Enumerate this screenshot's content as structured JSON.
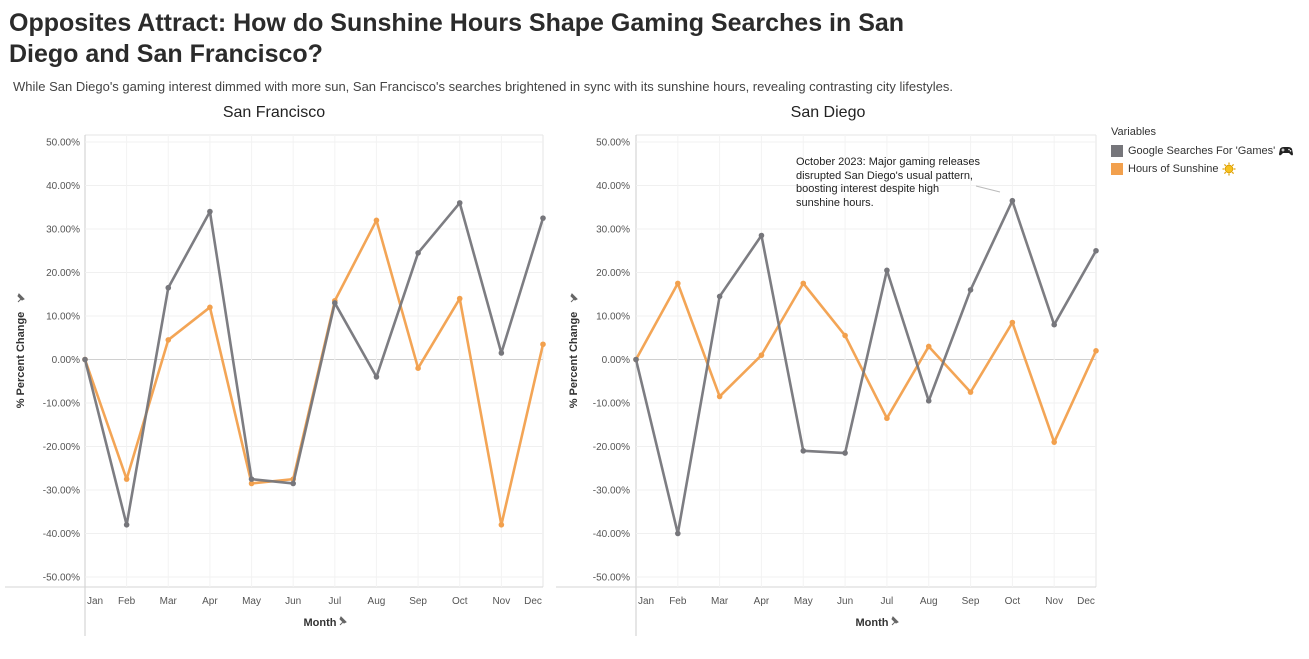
{
  "title": "Opposites Attract: How do Sunshine Hours Shape Gaming Searches in San Diego and San Francisco?",
  "subtitle": "While San Diego's gaming interest dimmed with more sun, San Francisco's searches brightened  in sync with its sunshine hours, revealing contrasting city lifestyles.",
  "legend": {
    "title": "Variables",
    "items": [
      {
        "label": "Google Searches For 'Games'",
        "color": "#76767b",
        "icon": "game-controller-icon"
      },
      {
        "label": "Hours of Sunshine",
        "color": "#f2a04d",
        "icon": "sun-icon"
      }
    ]
  },
  "annotation": "October 2023: Major gaming releases disrupted San Diego's usual pattern, boosting interest despite high sunshine hours.",
  "chart_data": [
    {
      "type": "line",
      "title": "San Francisco",
      "xlabel": "Month",
      "ylabel": "% Percent Change",
      "ylim": [
        -50,
        50
      ],
      "yticks": [
        "50.00%",
        "40.00%",
        "30.00%",
        "20.00%",
        "10.00%",
        "0.00%",
        "-10.00%",
        "-20.00%",
        "-30.00%",
        "-40.00%",
        "-50.00%"
      ],
      "categories": [
        "Jan",
        "Feb",
        "Mar",
        "Apr",
        "May",
        "Jun",
        "Jul",
        "Aug",
        "Sep",
        "Oct",
        "Nov",
        "Dec"
      ],
      "series": [
        {
          "name": "Google Searches For 'Games'",
          "color": "#76767b",
          "values": [
            0,
            -38,
            16.5,
            34,
            -27.5,
            -28.5,
            13,
            -4,
            24.5,
            36,
            1.5,
            32.5
          ]
        },
        {
          "name": "Hours of Sunshine",
          "color": "#f2a04d",
          "values": [
            0,
            -27.5,
            4.5,
            12,
            -28.5,
            -27.5,
            13.5,
            32,
            -2,
            14,
            -38,
            3.5
          ]
        }
      ],
      "grid": true
    },
    {
      "type": "line",
      "title": "San Diego",
      "xlabel": "Month",
      "ylabel": "% Percent Change",
      "ylim": [
        -50,
        50
      ],
      "yticks": [
        "50.00%",
        "40.00%",
        "30.00%",
        "20.00%",
        "10.00%",
        "0.00%",
        "-10.00%",
        "-20.00%",
        "-30.00%",
        "-40.00%",
        "-50.00%"
      ],
      "categories": [
        "Jan",
        "Feb",
        "Mar",
        "Apr",
        "May",
        "Jun",
        "Jul",
        "Aug",
        "Sep",
        "Oct",
        "Nov",
        "Dec"
      ],
      "series": [
        {
          "name": "Google Searches For 'Games'",
          "color": "#76767b",
          "values": [
            0,
            -40,
            14.5,
            28.5,
            -21,
            -21.5,
            20.5,
            -9.5,
            16,
            36.5,
            8,
            25
          ]
        },
        {
          "name": "Hours of Sunshine",
          "color": "#f2a04d",
          "values": [
            0,
            17.5,
            -8.5,
            1,
            17.5,
            5.5,
            -13.5,
            3,
            -7.5,
            8.5,
            -19,
            2
          ]
        }
      ],
      "grid": true
    }
  ]
}
